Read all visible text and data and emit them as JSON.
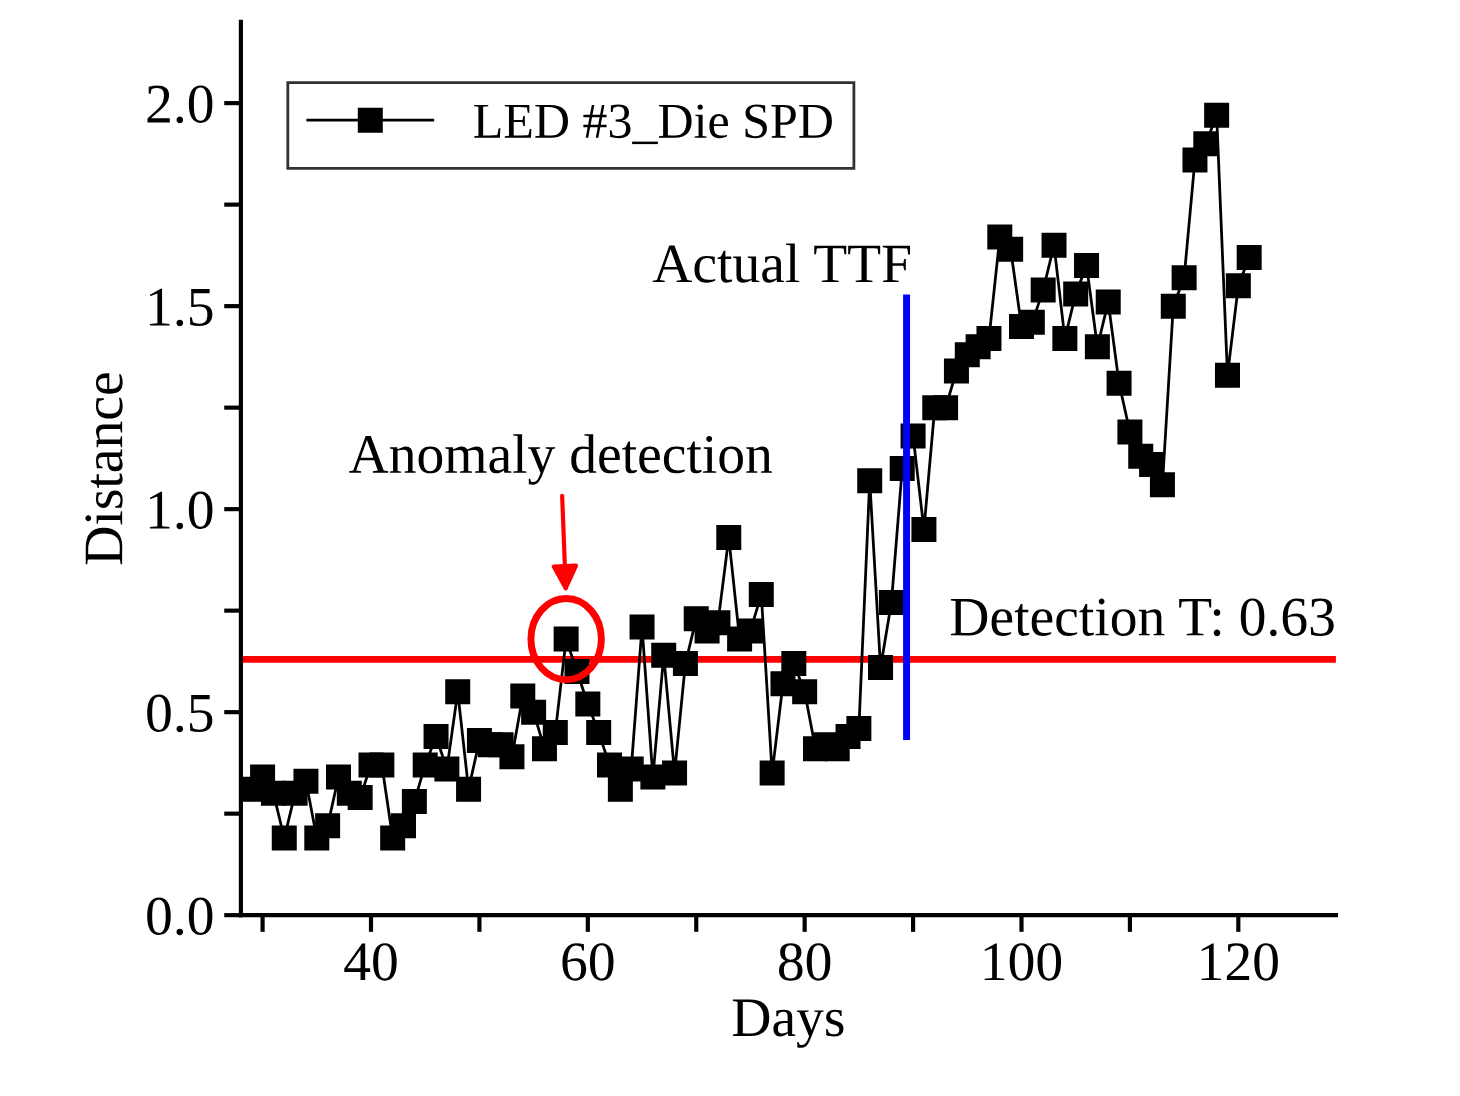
{
  "chart_data": {
    "type": "line",
    "xlabel": "Days",
    "ylabel": "Distance",
    "x": [
      29,
      30,
      31,
      32,
      33,
      34,
      35,
      36,
      37,
      38,
      39,
      40,
      41,
      42,
      43,
      44,
      45,
      46,
      47,
      48,
      49,
      50,
      51,
      52,
      53,
      54,
      55,
      56,
      57,
      58,
      59,
      60,
      61,
      62,
      63,
      64,
      65,
      66,
      67,
      68,
      69,
      70,
      71,
      72,
      73,
      74,
      75,
      76,
      77,
      78,
      79,
      80,
      81,
      82,
      83,
      84,
      85,
      86,
      87,
      88,
      89,
      90,
      91,
      92,
      93,
      94,
      95,
      96,
      97,
      98,
      99,
      100,
      101,
      102,
      103,
      104,
      105,
      106,
      107,
      108,
      109,
      110,
      111,
      112,
      113,
      114,
      115,
      116,
      117,
      118,
      119,
      120,
      121
    ],
    "series": [
      {
        "name": "LED #3_Die SPD",
        "color": "#000000",
        "marker": "square",
        "values": [
          0.31,
          0.34,
          0.3,
          0.19,
          0.3,
          0.33,
          0.19,
          0.22,
          0.34,
          0.3,
          0.29,
          0.37,
          0.37,
          0.19,
          0.22,
          0.28,
          0.37,
          0.44,
          0.36,
          0.55,
          0.31,
          0.43,
          0.42,
          0.42,
          0.39,
          0.54,
          0.5,
          0.41,
          0.45,
          0.68,
          0.6,
          0.52,
          0.45,
          0.37,
          0.31,
          0.36,
          0.71,
          0.34,
          0.64,
          0.35,
          0.62,
          0.73,
          0.7,
          0.72,
          0.93,
          0.68,
          0.7,
          0.79,
          0.35,
          0.57,
          0.62,
          0.55,
          0.41,
          0.42,
          0.41,
          0.44,
          0.46,
          1.07,
          0.61,
          0.77,
          1.1,
          1.18,
          0.95,
          1.25,
          1.25,
          1.34,
          1.38,
          1.4,
          1.42,
          1.67,
          1.64,
          1.45,
          1.46,
          1.54,
          1.65,
          1.42,
          1.53,
          1.6,
          1.4,
          1.51,
          1.31,
          1.19,
          1.13,
          1.11,
          1.06,
          1.5,
          1.57,
          1.86,
          1.9,
          1.97,
          1.33,
          1.55,
          1.62
        ]
      },
      {
        "type": "line",
        "color": "#0000ff",
        "marker": "none",
        "x": [
          89.4,
          89.4
        ],
        "values": [
          0.44,
          1.52
        ]
      }
    ],
    "xlim": [
      28,
      129
    ],
    "ylim": [
      0,
      2.2
    ],
    "xticks": [
      {
        "value": 30,
        "label": null
      },
      40,
      {
        "value": 50,
        "label": null
      },
      60,
      {
        "value": 70,
        "label": null
      },
      80,
      {
        "value": 90,
        "label": null
      },
      100,
      {
        "value": 110,
        "label": null
      },
      120
    ],
    "yticks": [
      {
        "value": 0,
        "label": "0.0"
      },
      {
        "value": 0.25,
        "label": null
      },
      {
        "value": 0.5,
        "label": "0.5"
      },
      {
        "value": 0.75,
        "label": null
      },
      {
        "value": 1,
        "label": "1.0"
      },
      {
        "value": 1.25,
        "label": null
      },
      {
        "value": 1.5,
        "label": "1.5"
      },
      {
        "value": 1.75,
        "label": null
      },
      {
        "value": 2,
        "label": "2.0"
      }
    ],
    "ref_lines": [
      {
        "axis": "y",
        "value": 0.63,
        "label": "Detection T: 0.63",
        "color": "#ff0000"
      }
    ],
    "annotations": [
      {
        "text": "Anomaly detection",
        "x": 58,
        "y": 0.68
      },
      {
        "text": "Actual TTF",
        "x": 89.4,
        "y": 1.52
      }
    ],
    "legend": "top left",
    "grid": false
  }
}
